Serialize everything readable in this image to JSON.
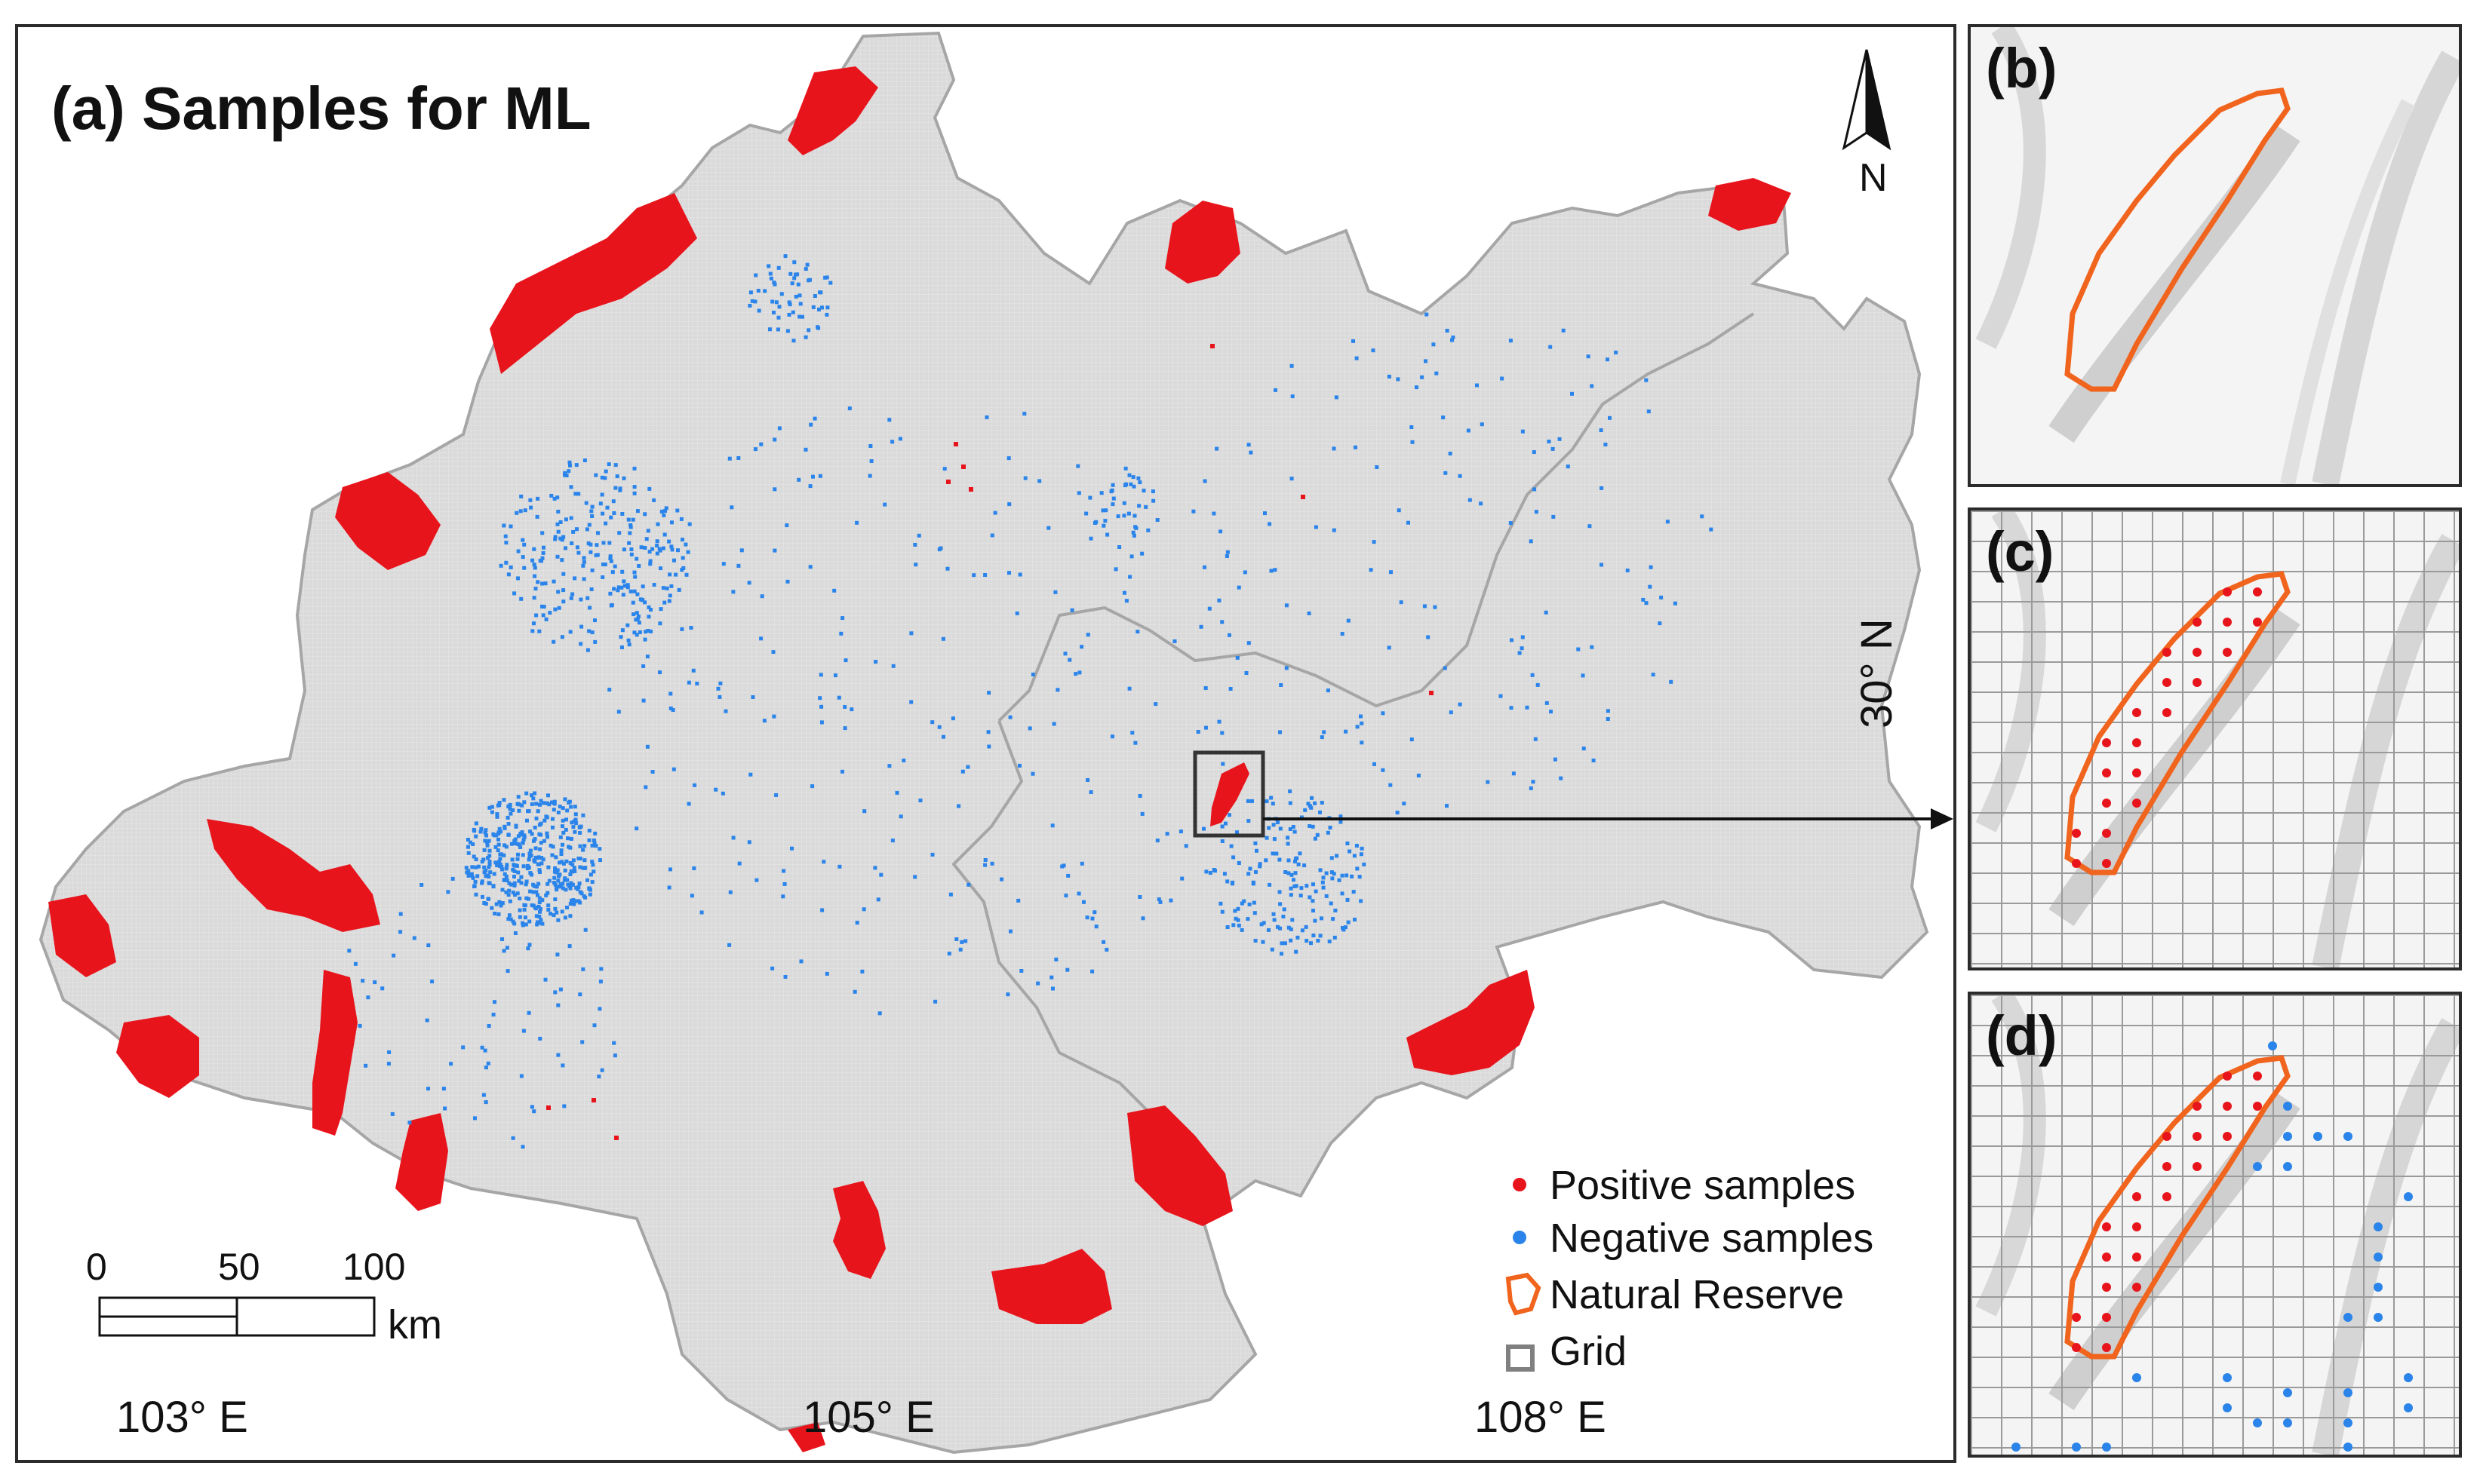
{
  "panel_a": {
    "title": "(a) Samples for ML",
    "north_label": "N",
    "lon_ticks": [
      "103° E",
      "105° E",
      "108° E"
    ],
    "lat_tick": "30° N",
    "scale": {
      "labels": [
        "0",
        "50",
        "100"
      ],
      "unit": "km"
    },
    "legend": [
      {
        "label": "Positive samples",
        "symbol": "red-dot",
        "color": "#e8141c"
      },
      {
        "label": "Negative samples",
        "symbol": "blue-dot",
        "color": "#2a84ea"
      },
      {
        "label": "Natural Reserve",
        "symbol": "orange-outline",
        "color": "#f0641e"
      },
      {
        "label": "Grid",
        "symbol": "gray-square",
        "color": "#808080"
      }
    ]
  },
  "panel_b": {
    "label": "(b)"
  },
  "panel_c": {
    "label": "(c)"
  },
  "panel_d": {
    "label": "(d)"
  },
  "colors": {
    "region_fill": "#d9d9d9",
    "region_border": "#a6a6a6",
    "positive": "#e8141c",
    "negative": "#2a84ea",
    "reserve": "#f0641e",
    "grid": "#8c8c8c"
  }
}
